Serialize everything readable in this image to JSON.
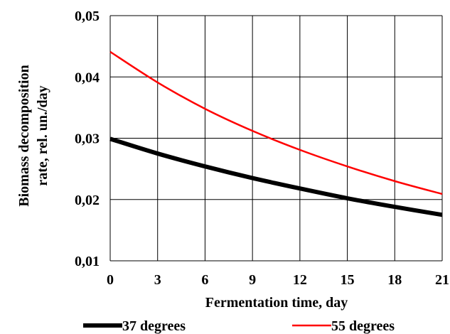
{
  "chart_data": {
    "type": "line",
    "title": "",
    "xlabel": "Fermentation time, day",
    "ylabel_lines": [
      "Biomass decomposition",
      "rate, rel. un./day"
    ],
    "xlim": [
      0,
      21
    ],
    "ylim": [
      0.01,
      0.05
    ],
    "grid": true,
    "legend_position": "bottom",
    "x_ticks": [
      0,
      3,
      6,
      9,
      12,
      15,
      18,
      21
    ],
    "x_tick_labels": [
      "0",
      "3",
      "6",
      "9",
      "12",
      "15",
      "18",
      "21"
    ],
    "y_ticks": [
      0.01,
      0.02,
      0.03,
      0.04,
      0.05
    ],
    "y_tick_labels": [
      "0,01",
      "0,02",
      "0,03",
      "0,04",
      "0,05"
    ],
    "x": [
      0,
      3,
      6,
      9,
      12,
      15,
      18,
      21
    ],
    "series": [
      {
        "name": "37 degrees",
        "color": "#000000",
        "values": [
          0.0299,
          0.0275,
          0.0254,
          0.0235,
          0.0218,
          0.0202,
          0.0188,
          0.0175
        ]
      },
      {
        "name": "55 degrees",
        "color": "#ff0000",
        "values": [
          0.0441,
          0.0391,
          0.0348,
          0.0312,
          0.0281,
          0.0254,
          0.023,
          0.0209
        ]
      }
    ]
  }
}
